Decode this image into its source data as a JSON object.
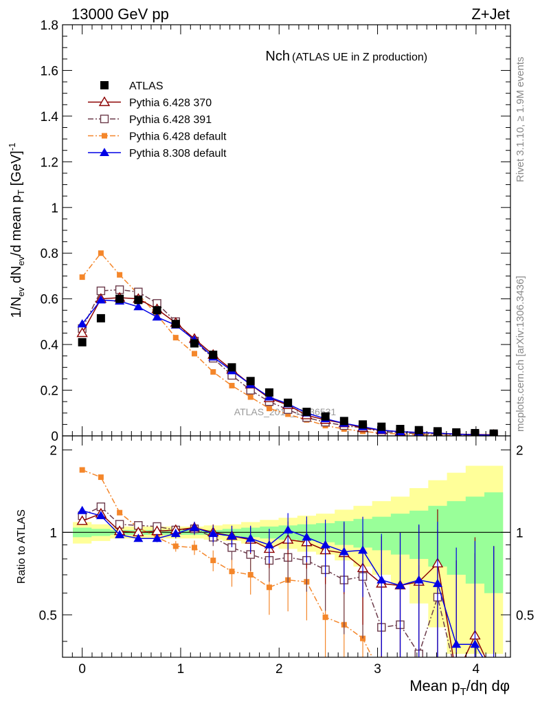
{
  "header": {
    "left": "13000 GeV pp",
    "right": "Z+Jet"
  },
  "side_text": {
    "rivet": "Rivet 3.1.10, ≥ 1.9M events",
    "mcplots": "mcplots.cern.ch [arXiv:1306.3436]"
  },
  "colors": {
    "atlas": "#000000",
    "p6_370": "#8b0000",
    "p6_391": "#6b3a4a",
    "p6_default": "#f4862a",
    "p8_default": "#0000e6",
    "band_inner": "#99ff99",
    "band_outer": "#ffff99"
  },
  "chart_data": [
    {
      "type": "scatter",
      "title": "Nch",
      "subtitle": "(ATLAS UE in Z production)",
      "watermark": "ATLAS_2019_I1736531",
      "ylabel": "1/N_ev dN_ev/d mean p_T [GeV]^-1",
      "ylim": [
        0,
        1.8
      ],
      "xlim": [
        -0.2,
        4.35
      ],
      "yticks": [
        "0",
        "0.2",
        "0.4",
        "0.6",
        "0.8",
        "1",
        "1.2",
        "1.4",
        "1.6",
        "1.8"
      ],
      "legend_position": "top-left",
      "x": [
        0,
        0.19,
        0.38,
        0.57,
        0.76,
        0.95,
        1.14,
        1.33,
        1.52,
        1.71,
        1.9,
        2.09,
        2.28,
        2.47,
        2.66,
        2.85,
        3.04,
        3.23,
        3.42,
        3.61,
        3.8,
        3.99,
        4.18
      ],
      "series": [
        {
          "name": "ATLAS",
          "key": "atlas",
          "values": [
            0.41,
            0.515,
            0.6,
            0.595,
            0.55,
            0.49,
            0.405,
            0.355,
            0.3,
            0.24,
            0.19,
            0.145,
            0.105,
            0.085,
            0.065,
            0.05,
            0.04,
            0.03,
            0.025,
            0.02,
            0.015,
            0.012,
            0.01
          ]
        },
        {
          "name": "Pythia 6.428 370",
          "key": "p6_370",
          "values": [
            0.45,
            0.6,
            0.605,
            0.6,
            0.555,
            0.495,
            0.425,
            0.355,
            0.29,
            0.225,
            0.165,
            0.135,
            0.09,
            0.07,
            0.055,
            0.035,
            0.025,
            0.018,
            0.015,
            0.012,
            0.008,
            0.006,
            0.005
          ]
        },
        {
          "name": "Pythia 6.428 391",
          "key": "p6_391",
          "values": [
            0.47,
            0.635,
            0.64,
            0.63,
            0.58,
            0.5,
            0.415,
            0.34,
            0.265,
            0.2,
            0.15,
            0.115,
            0.08,
            0.06,
            0.045,
            0.035,
            0.018,
            0.014,
            0.009,
            0.01,
            0.005,
            0.004,
            0.003
          ]
        },
        {
          "name": "Pythia 6.428 default",
          "key": "p6_default",
          "values": [
            0.695,
            0.8,
            0.705,
            0.62,
            0.53,
            0.43,
            0.36,
            0.28,
            0.22,
            0.17,
            0.12,
            0.095,
            0.07,
            0.045,
            0.03,
            0.02,
            0.012,
            0.008,
            0.005,
            0.004,
            0.002,
            0.002,
            0.001
          ]
        },
        {
          "name": "Pythia 8.308 default",
          "key": "p8_default",
          "values": [
            0.49,
            0.595,
            0.59,
            0.565,
            0.52,
            0.485,
            0.42,
            0.345,
            0.285,
            0.225,
            0.17,
            0.14,
            0.1,
            0.075,
            0.055,
            0.04,
            0.025,
            0.018,
            0.015,
            0.012,
            0.007,
            0.005,
            0.003
          ]
        }
      ]
    },
    {
      "type": "scatter",
      "ylabel": "Ratio to ATLAS",
      "xlabel": "Mean p_T/dη dφ",
      "ylim": [
        0.35,
        2.25
      ],
      "xlim": [
        -0.2,
        4.35
      ],
      "xticks": [
        "0",
        "1",
        "2",
        "3",
        "4"
      ],
      "yticks": [
        "0.5",
        "1",
        "2"
      ],
      "reference_line": 1,
      "x": [
        0,
        0.19,
        0.38,
        0.57,
        0.76,
        0.95,
        1.14,
        1.33,
        1.52,
        1.71,
        1.9,
        2.09,
        2.28,
        2.47,
        2.66,
        2.85,
        3.04,
        3.23,
        3.42,
        3.61,
        3.8,
        3.99,
        4.18
      ],
      "band_inner_halfwidth": [
        0.04,
        0.03,
        0.02,
        0.02,
        0.02,
        0.02,
        0.02,
        0.02,
        0.03,
        0.04,
        0.05,
        0.06,
        0.07,
        0.08,
        0.1,
        0.12,
        0.14,
        0.17,
        0.2,
        0.25,
        0.3,
        0.35,
        0.4
      ],
      "band_outer_halfwidth": [
        0.09,
        0.07,
        0.05,
        0.05,
        0.05,
        0.05,
        0.05,
        0.06,
        0.07,
        0.09,
        0.11,
        0.13,
        0.15,
        0.17,
        0.21,
        0.25,
        0.3,
        0.35,
        0.45,
        0.55,
        0.65,
        0.75,
        0.75
      ],
      "series": [
        {
          "name": "Pythia 6.428 370",
          "key": "p6_370",
          "values": [
            1.1,
            1.17,
            1.01,
            1.0,
            1.01,
            1.02,
            1.04,
            1.0,
            0.97,
            0.94,
            0.87,
            0.94,
            0.92,
            0.86,
            0.84,
            0.74,
            0.65,
            0.64,
            0.66,
            0.77,
            0.3,
            0.42,
            0.3
          ]
        },
        {
          "name": "Pythia 6.428 391",
          "key": "p6_391",
          "values": [
            1.15,
            1.24,
            1.07,
            1.06,
            1.05,
            1.02,
            1.03,
            0.96,
            0.88,
            0.83,
            0.79,
            0.81,
            0.79,
            0.73,
            0.67,
            0.69,
            0.45,
            0.46,
            0.36,
            0.58,
            0.3,
            0.3,
            0.3
          ]
        },
        {
          "name": "Pythia 6.428 default",
          "key": "p6_default",
          "values": [
            1.69,
            1.59,
            1.18,
            1.04,
            0.96,
            0.89,
            0.88,
            0.79,
            0.72,
            0.7,
            0.63,
            0.67,
            0.66,
            0.49,
            0.46,
            0.41,
            0.3,
            0.3,
            0.3,
            0.3,
            0.3,
            0.3,
            0.3
          ]
        },
        {
          "name": "Pythia 8.308 default",
          "key": "p8_default",
          "values": [
            1.2,
            1.15,
            0.98,
            0.95,
            0.95,
            0.99,
            1.04,
            0.99,
            0.97,
            0.95,
            0.9,
            1.02,
            0.96,
            0.9,
            0.85,
            0.86,
            0.67,
            0.64,
            0.67,
            0.65,
            0.39,
            0.39,
            0.3
          ]
        }
      ]
    }
  ]
}
